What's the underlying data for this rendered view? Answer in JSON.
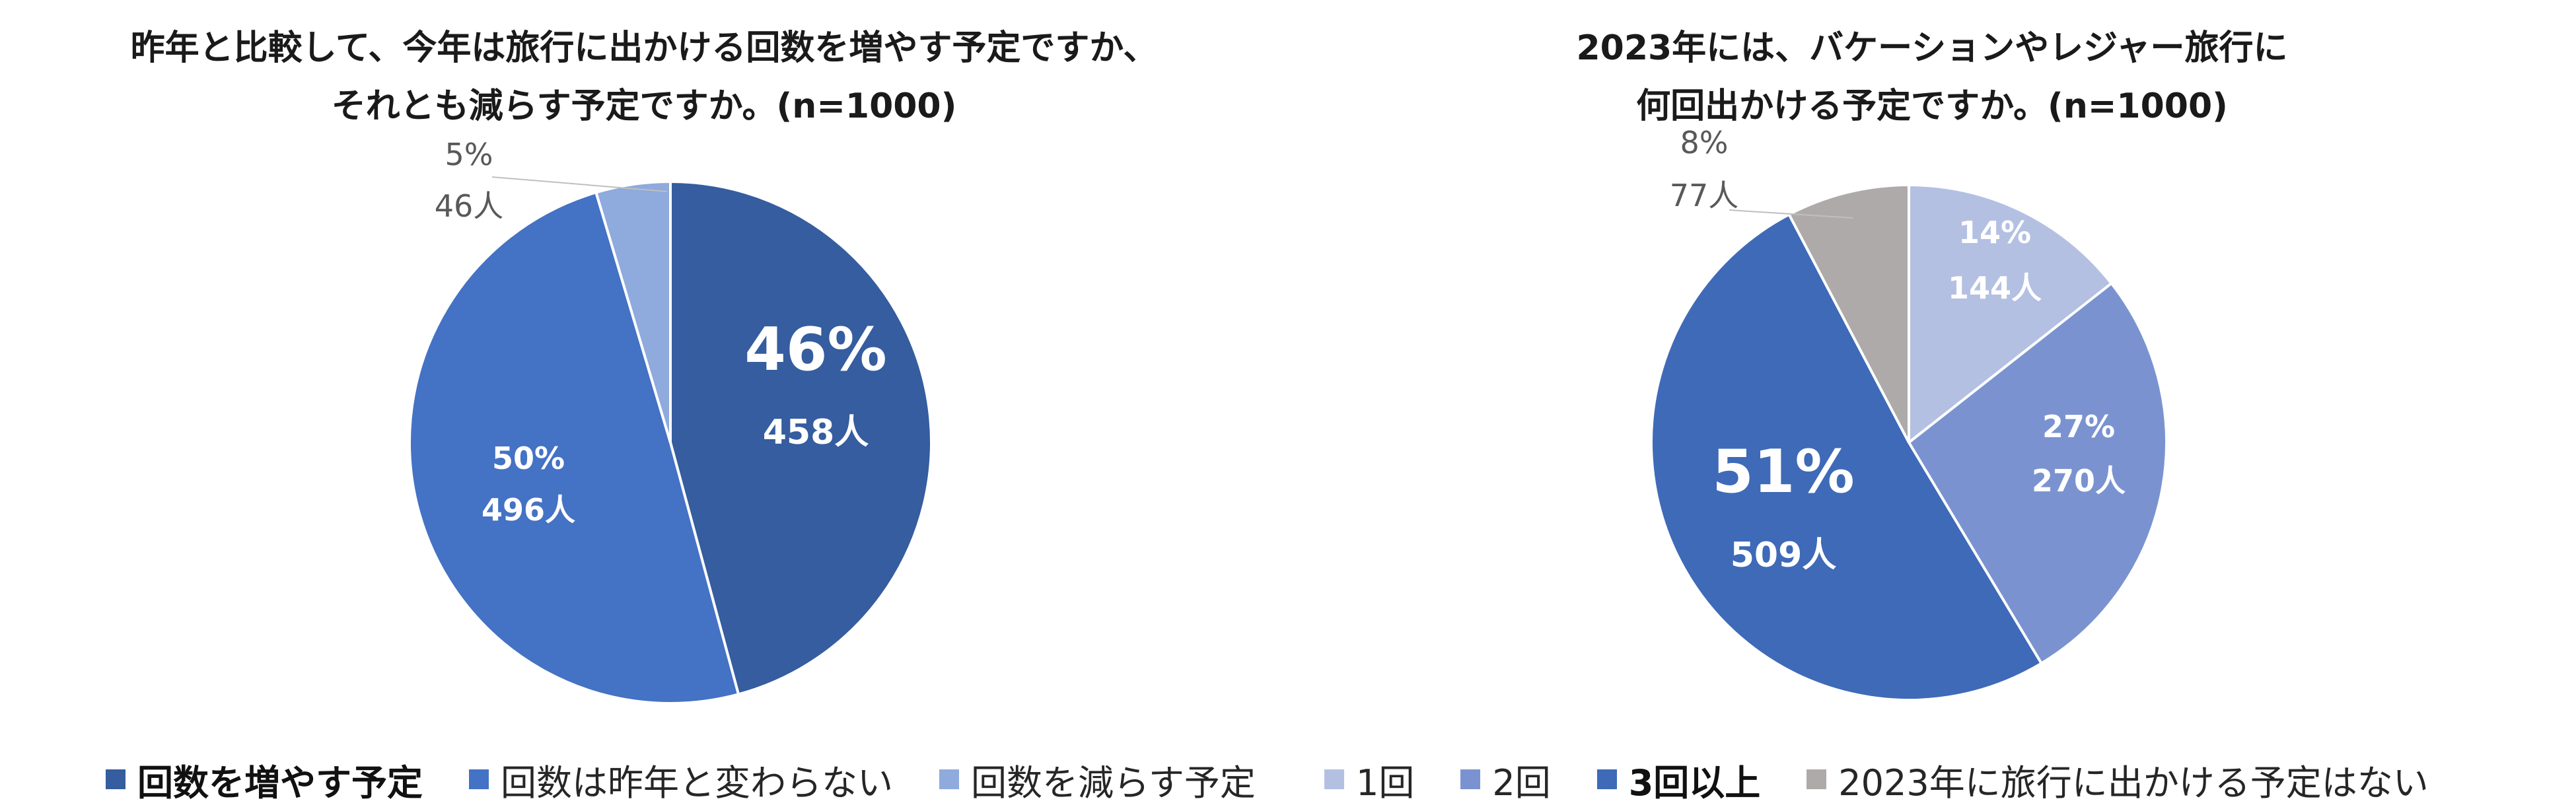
{
  "chart_data": [
    {
      "type": "pie",
      "title": "昨年と比較して、今年は旅行に出かける回数を増やす予定ですか、それとも減らす予定ですか。(n=1000)",
      "title_lines": [
        "昨年と比較して、今年は旅行に出かける回数を増やす予定ですか、",
        "それとも減らす予定ですか。(n=1000)"
      ],
      "legend_position": "bottom",
      "start_angle_deg": 0,
      "slices": [
        {
          "name": "回数を増やす予定",
          "value": 458,
          "percent": 46,
          "percent_label": "46%",
          "count_label": "458人",
          "color": "#355d9f",
          "label_style": "large-inside",
          "legend_bold": true
        },
        {
          "name": "回数は昨年と変わらない",
          "value": 496,
          "percent": 50,
          "percent_label": "50%",
          "count_label": "496人",
          "color": "#4472c4",
          "label_style": "inside",
          "legend_bold": false
        },
        {
          "name": "回数を減らす予定",
          "value": 46,
          "percent": 5,
          "percent_label": "5%",
          "count_label": "46人",
          "color": "#8faadc",
          "label_style": "outside",
          "legend_bold": false
        }
      ]
    },
    {
      "type": "pie",
      "title": "2023年には、バケーションやレジャー旅行に何回出かける予定ですか。(n=1000)",
      "title_lines": [
        "2023年には、バケーションやレジャー旅行に",
        "何回出かける予定ですか。(n=1000)"
      ],
      "legend_position": "bottom",
      "start_angle_deg": 0,
      "slices": [
        {
          "name": "1回",
          "value": 144,
          "percent": 14,
          "percent_label": "14%",
          "count_label": "144人",
          "color": "#b4c0e2",
          "label_style": "inside",
          "legend_bold": false
        },
        {
          "name": "2回",
          "value": 270,
          "percent": 27,
          "percent_label": "27%",
          "count_label": "270人",
          "color": "#7a93d0",
          "label_style": "inside",
          "legend_bold": false
        },
        {
          "name": "3回以上",
          "value": 509,
          "percent": 51,
          "percent_label": "51%",
          "count_label": "509人",
          "color": "#3e6ab8",
          "label_style": "large-inside",
          "legend_bold": true
        },
        {
          "name": "2023年に旅行に出かける予定はない",
          "value": 77,
          "percent": 8,
          "percent_label": "8%",
          "count_label": "77人",
          "color": "#aeaaaa",
          "label_style": "outside",
          "legend_bold": false
        }
      ]
    }
  ]
}
